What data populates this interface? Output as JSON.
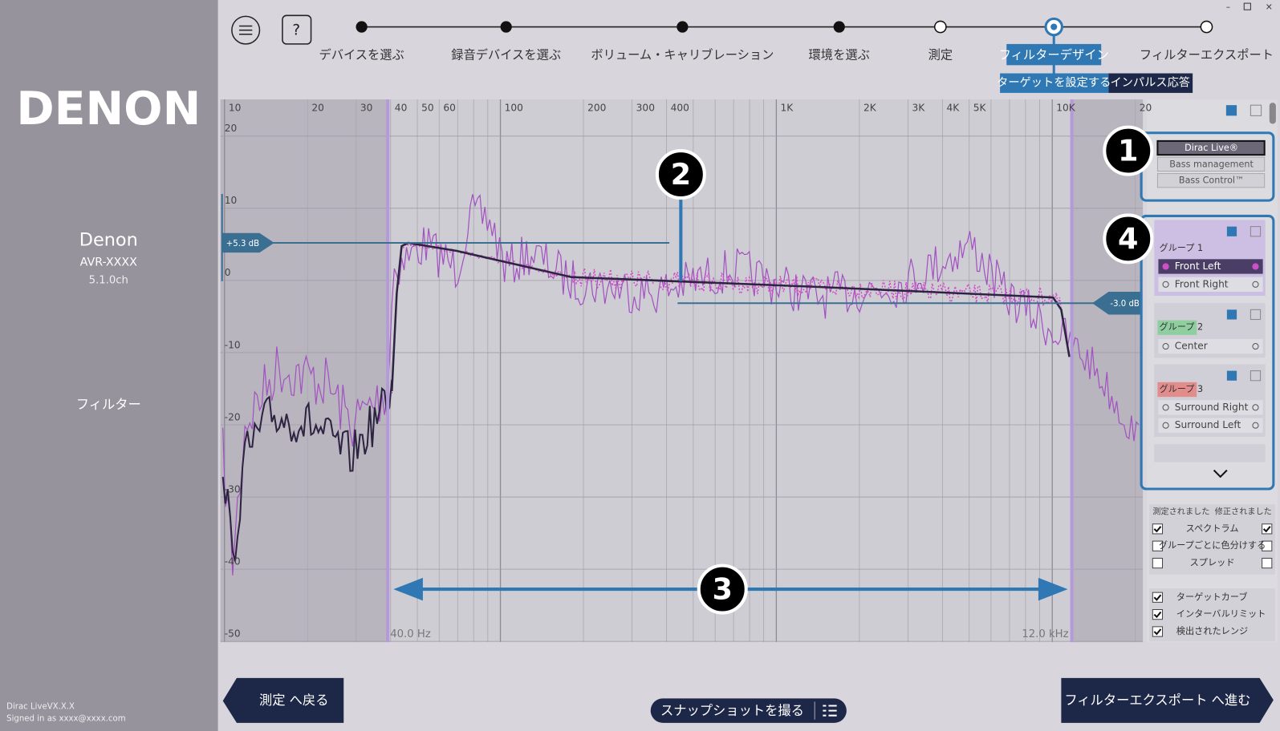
{
  "sidebar": {
    "logo": "DENON",
    "device_name": "Denon",
    "model": "AVR-XXXX",
    "channels": "5.1.0ch",
    "section": "フィルター",
    "version": "Dirac LiveVX.X.X",
    "signed_in": "Signed in as xxxx@xxxx.com"
  },
  "steps": [
    "デバイスを選ぶ",
    "録音デバイスを選ぶ",
    "ボリューム・キャリブレーション",
    "環境を選ぶ",
    "測定",
    "フィルターデザイン",
    "フィルターエクスポート"
  ],
  "tabs": [
    "ターゲットを設定する",
    "インパルス応答"
  ],
  "graph": {
    "x_ticks": [
      "10",
      "20",
      "30",
      "40",
      "50",
      "60",
      "100",
      "200",
      "300",
      "400",
      "1K",
      "2K",
      "3K",
      "4K",
      "5K",
      "10K",
      "20"
    ],
    "y_ticks": [
      "20",
      "10",
      "0",
      "-10",
      "-20",
      "-30",
      "-40",
      "-50"
    ],
    "target_high": "+5.3 dB",
    "target_low": "-3.0 dB",
    "range_low": "40.0 Hz",
    "range_high": "12.0 kHz"
  },
  "callouts": [
    "1",
    "2",
    "3",
    "4"
  ],
  "panel": {
    "modes": [
      "Dirac Live®",
      "Bass management",
      "Bass Control™"
    ],
    "groups": [
      {
        "name": "グループ 1",
        "channels": [
          "Front Left",
          "Front Right"
        ]
      },
      {
        "name": "グループ 2",
        "channels": [
          "Center"
        ]
      },
      {
        "name": "グループ 3",
        "channels": [
          "Surround Right",
          "Surround Left"
        ]
      }
    ],
    "columns": [
      "測定されました",
      "修正されました"
    ],
    "options": [
      "スペクトラム",
      "グループごとに色分けする",
      "スプレッド"
    ],
    "overlays": [
      "ターゲットカーブ",
      "インターバルリミット",
      "検出されたレンジ"
    ]
  },
  "buttons": {
    "back": "測定 へ戻る",
    "snapshot": "スナップショットを撮る",
    "next": "フィルターエクスポート へ進む"
  }
}
